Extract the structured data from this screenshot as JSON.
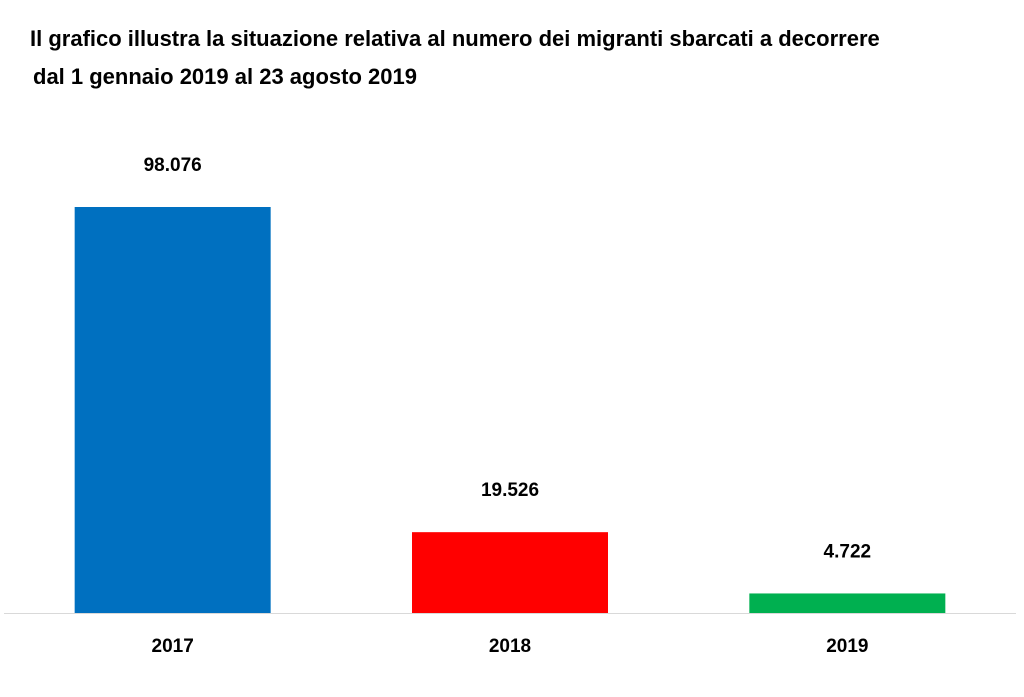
{
  "title": {
    "line1": "Il grafico illustra la situazione relativa al numero dei migranti sbarcati a decorrere",
    "line2": "dal  1 gennaio 2019 al 23 agosto 2019"
  },
  "chart_data": {
    "type": "bar",
    "title": "Il grafico illustra la situazione relativa al numero dei migranti sbarcati a decorrere dal  1 gennaio 2019 al 23 agosto 2019",
    "categories": [
      "2017",
      "2018",
      "2019"
    ],
    "values": [
      98076,
      19526,
      4722
    ],
    "value_labels": [
      "98.076",
      "19.526",
      "4.722"
    ],
    "colors": [
      "#0070c0",
      "#ff0000",
      "#00b050"
    ],
    "xlabel": "",
    "ylabel": "",
    "ylim": [
      0,
      98076
    ],
    "grid": false,
    "legend": "none"
  }
}
